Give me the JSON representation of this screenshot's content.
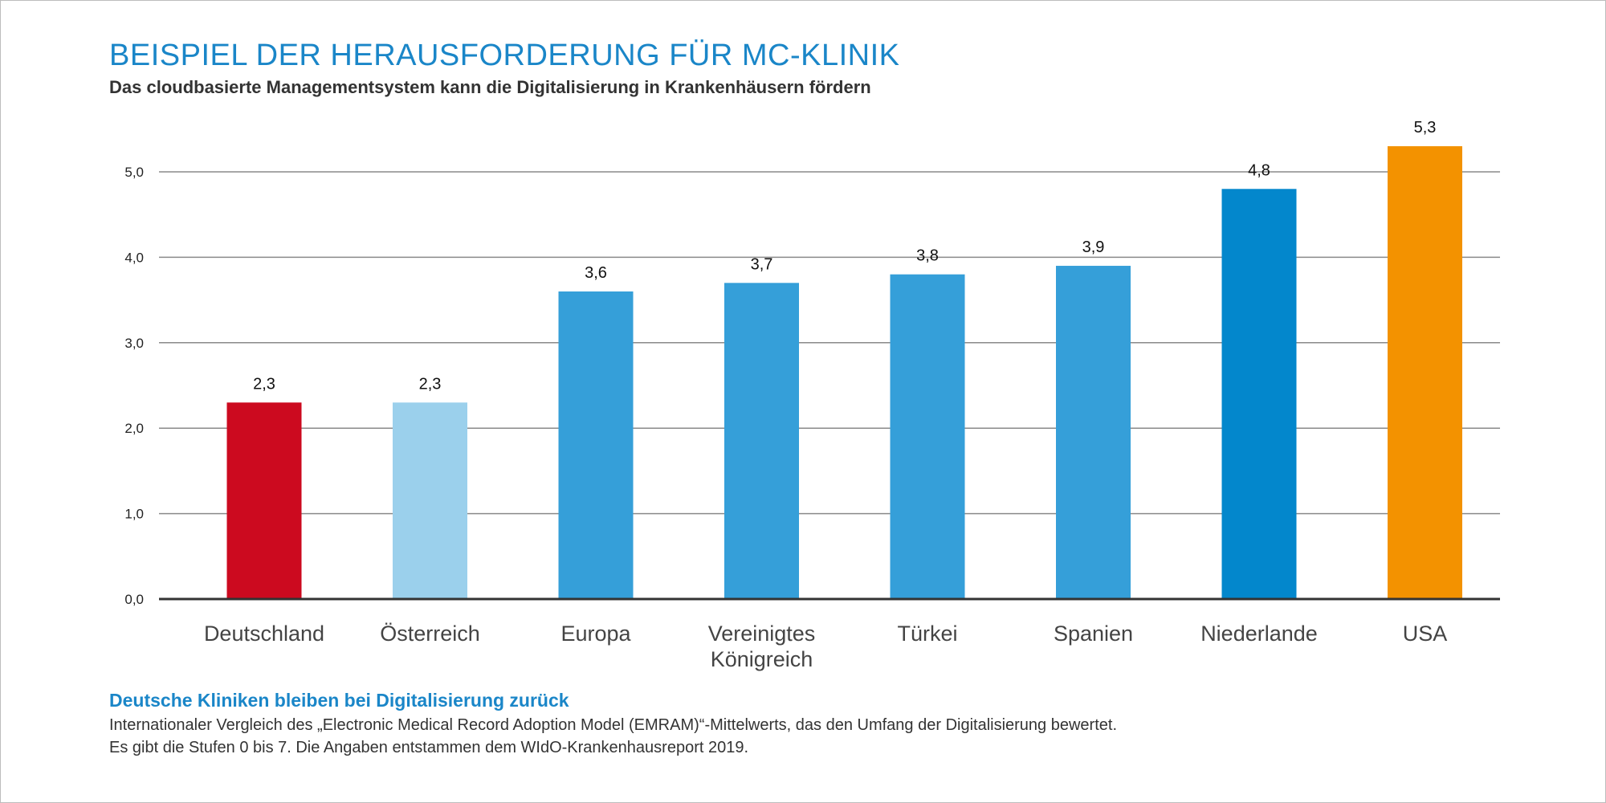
{
  "header": {
    "title": "BEISPIEL DER HERAUSFORDERUNG FÜR MC-KLINIK",
    "subtitle": "Das cloudbasierte Managementsystem kann die Digitalisierung in Krankenhäusern fördern"
  },
  "chart_data": {
    "type": "bar",
    "categories": [
      [
        "Deutschland"
      ],
      [
        "Österreich"
      ],
      [
        "Europa"
      ],
      [
        "Vereinigtes",
        "Königreich"
      ],
      [
        "Türkei"
      ],
      [
        "Spanien"
      ],
      [
        "Niederlande"
      ],
      [
        "USA"
      ]
    ],
    "values": [
      2.3,
      2.3,
      3.6,
      3.7,
      3.8,
      3.9,
      4.8,
      5.3
    ],
    "value_labels": [
      "2,3",
      "2,3",
      "3,6",
      "3,7",
      "3,8",
      "3,9",
      "4,8",
      "5,3"
    ],
    "colors": [
      "#cc0a1f",
      "#9bd0ec",
      "#359fd9",
      "#359fd9",
      "#359fd9",
      "#359fd9",
      "#0387cc",
      "#f39200"
    ],
    "ylim": [
      0,
      5.3
    ],
    "yticks": [
      0,
      1,
      2,
      3,
      4,
      5
    ],
    "ytick_labels": [
      "0,0",
      "1,0",
      "2,0",
      "3,0",
      "4,0",
      "5,0"
    ],
    "grid": true,
    "gridline_color": "#8a8a8a",
    "axis_color": "#333333"
  },
  "footer": {
    "title": "Deutsche Kliniken bleiben bei Digitalisierung zurück",
    "line1": "Internationaler Vergleich des „Electronic Medical Record Adoption Model (EMRAM)“-Mittelwerts, das den Umfang der Digitalisierung bewertet.",
    "line2": "Es gibt die Stufen 0 bis 7. Die Angaben entstammen dem WIdO-Krankenhausreport 2019."
  }
}
